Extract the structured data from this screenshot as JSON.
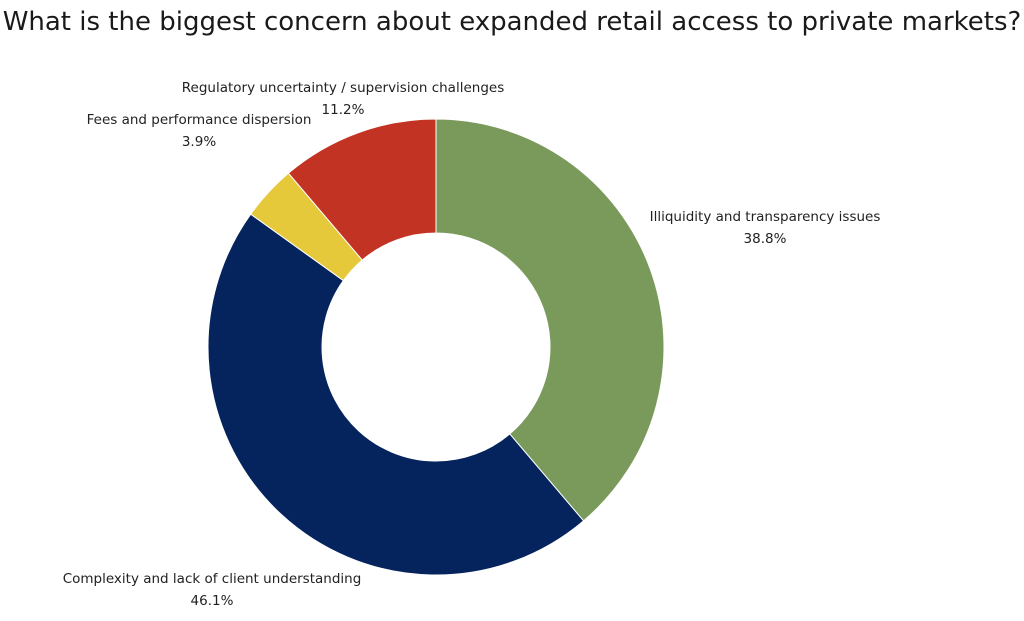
{
  "chart_data": {
    "type": "pie",
    "donut": true,
    "title": "What is the biggest concern about expanded retail access to private markets?",
    "slices": [
      {
        "label": "Illiquidity and transparency issues",
        "value": 38.8,
        "value_label": "38.8%",
        "color": "#7a9a5c"
      },
      {
        "label": "Complexity and lack of client understanding",
        "value": 46.1,
        "value_label": "46.1%",
        "color": "#05235c"
      },
      {
        "label": "Fees and performance dispersion",
        "value": 3.9,
        "value_label": "3.9%",
        "color": "#e5c93b"
      },
      {
        "label": "Regulatory uncertainty / supervision challenges",
        "value": 11.2,
        "value_label": "11.2%",
        "color": "#c23324"
      }
    ],
    "legend": "none",
    "start_angle_deg": 0,
    "direction": "clockwise"
  }
}
